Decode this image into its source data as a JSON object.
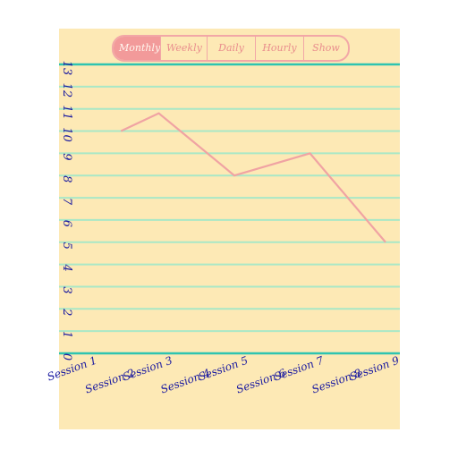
{
  "tabs": [
    {
      "label": "Monthly",
      "active": true
    },
    {
      "label": "Weekly",
      "active": false
    },
    {
      "label": "Daily",
      "active": false
    },
    {
      "label": "Hourly",
      "active": false
    },
    {
      "label": "Show All",
      "active": false
    }
  ],
  "colors": {
    "panel": "#fde9b5",
    "accent": "#f29a9a",
    "gridline": "#a9e8c6",
    "axis": "#2ec4b0",
    "label": "#1a1aa0",
    "line": "#f0a3a3"
  },
  "chart_data": {
    "type": "line",
    "categories": [
      "Session 1",
      "Session 2",
      "Session 3",
      "Session 4",
      "Session 5",
      "Session 6",
      "Session 7",
      "Session 8",
      "Session 9"
    ],
    "series": [
      {
        "values": [
          null,
          10.0,
          10.8,
          null,
          8.0,
          null,
          9.0,
          null,
          5.0
        ]
      }
    ],
    "y_ticks": [
      "0",
      "1",
      "2",
      "3",
      "4",
      "5",
      "6",
      "7",
      "8",
      "9",
      "10",
      "11",
      "12",
      "13"
    ],
    "ylim": [
      0,
      13
    ],
    "grid": true,
    "title": "",
    "xlabel": "",
    "ylabel": ""
  }
}
